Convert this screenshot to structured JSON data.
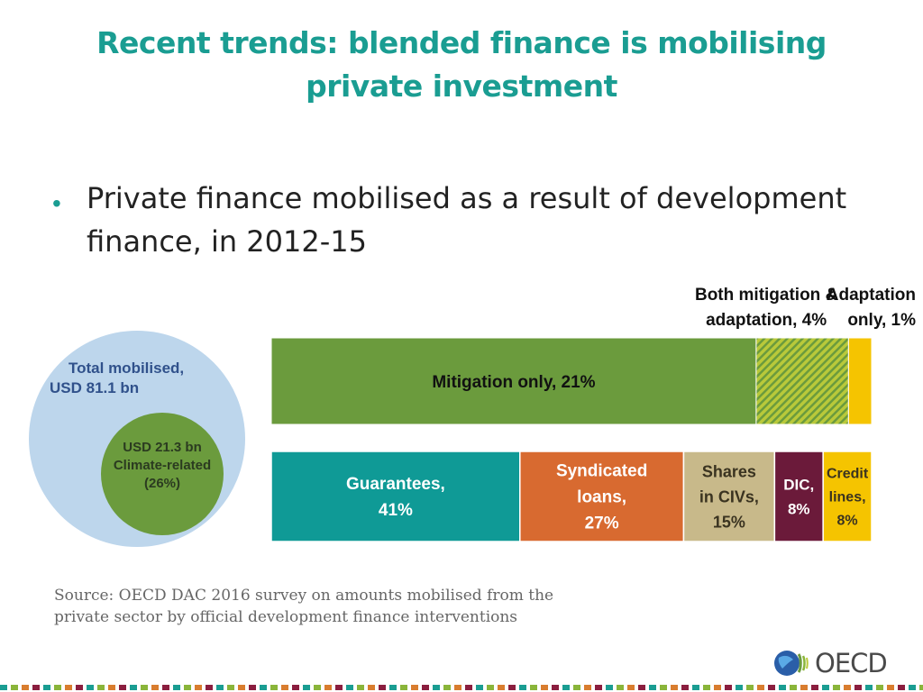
{
  "slide": {
    "title_line1": "Recent trends: blended finance is mobilising",
    "title_line2": "private investment",
    "bullet": "Private finance mobilised as a result of development finance, in 2012-15",
    "source_line1": "Source: OECD DAC 2016 survey on amounts mobilised from the",
    "source_line2": "private sector by official development finance interventions",
    "logo_text": "OECD"
  },
  "circles": {
    "outer_line1": "Total mobilised,",
    "outer_line2": "USD 81.1 bn",
    "inner_line1": "USD 21.3 bn",
    "inner_line2": "Climate-related",
    "inner_line3": "(26%)"
  },
  "chart_data": [
    {
      "type": "bar",
      "orientation": "horizontal-stacked",
      "series": [
        {
          "name": "Mitigation only",
          "value": 21,
          "label": [
            "Mitigation only, 21%"
          ],
          "color": "#6b9b3d",
          "pattern": "solid"
        },
        {
          "name": "Both mitigation & adaptation",
          "value": 4,
          "label": [
            "Both mitigation &",
            "adaptation, 4%"
          ],
          "color": "#b9c93a",
          "pattern": "hatched"
        },
        {
          "name": "Adaptation only",
          "value": 1,
          "label": [
            "Adaptation",
            "only, 1%"
          ],
          "color": "#f5c400",
          "pattern": "solid"
        }
      ]
    },
    {
      "type": "bar",
      "orientation": "horizontal-stacked",
      "series": [
        {
          "name": "Guarantees",
          "value": 41,
          "label": [
            "Guarantees,",
            "41%"
          ],
          "color": "#0f9a96"
        },
        {
          "name": "Syndicated loans",
          "value": 27,
          "label": [
            "Syndicated",
            "loans,",
            "27%"
          ],
          "color": "#d86a30"
        },
        {
          "name": "Shares in CIVs",
          "value": 15,
          "label": [
            "Shares",
            "in CIVs,",
            "15%"
          ],
          "color": "#c8b98a"
        },
        {
          "name": "DIC",
          "value": 8,
          "label": [
            "DIC,",
            "8%"
          ],
          "color": "#6b1a3a"
        },
        {
          "name": "Credit lines",
          "value": 8,
          "label": [
            "Credit",
            "lines,",
            "8%"
          ],
          "color": "#f5c400"
        }
      ]
    }
  ]
}
